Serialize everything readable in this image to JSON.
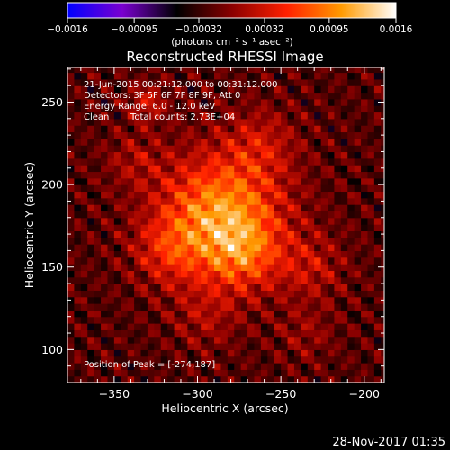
{
  "chart_data": {
    "type": "heatmap",
    "title": "Reconstructed RHESSI Image",
    "xlabel": "Heliocentric X (arcsec)",
    "ylabel": "Heliocentric Y (arcsec)",
    "xlim": [
      -378,
      -188
    ],
    "ylim": [
      80,
      271
    ],
    "xticks": [
      -350,
      -300,
      -250,
      -200
    ],
    "xtick_labels": [
      "−350",
      "−300",
      "−250",
      "−200"
    ],
    "yticks": [
      100,
      150,
      200,
      250
    ],
    "ytick_labels": [
      "100",
      "150",
      "200",
      "250"
    ],
    "colorbar": {
      "vmin": -0.0016,
      "vmax": 0.0016,
      "ticks": [
        -0.0016,
        -0.00095,
        -0.00032,
        0.00032,
        0.00095,
        0.0016
      ],
      "tick_labels": [
        "−0.0016",
        "−0.00095",
        "−0.00032",
        "0.00032",
        "0.00095",
        "0.0016"
      ],
      "units": "(photons cm⁻² s⁻¹ asec⁻²)",
      "colors": [
        "#0000ff",
        "#7a00d0",
        "#000000",
        "#8a0000",
        "#ff2000",
        "#ff9a00",
        "#ffffff"
      ]
    },
    "annotations": {
      "time_range": "21-Jun-2015 00:21:12.000 to 00:31:12.000",
      "detectors": "Detectors: 3F 5F 6F 7F 8F 9F, Att 0",
      "energy_range": "Energy Range: 6.0 - 12.0 keV",
      "algorithm": "Clean",
      "total_counts": "Total counts: 2.73E+04",
      "peak": "Position of Peak = [-274,187]"
    },
    "peak_position": [
      -274,
      187
    ],
    "sources": [
      {
        "x": -286,
        "y": 181,
        "sigma": 26,
        "amp": 0.0013
      },
      {
        "x": -272,
        "y": 158,
        "sigma": 15,
        "amp": 0.00055
      },
      {
        "x": -318,
        "y": 160,
        "sigma": 14,
        "amp": 0.00045
      },
      {
        "x": -262,
        "y": 225,
        "sigma": 15,
        "amp": 0.0004
      },
      {
        "x": -338,
        "y": 215,
        "sigma": 12,
        "amp": 0.0003
      },
      {
        "x": -330,
        "y": 250,
        "sigma": 8,
        "amp": 0.0005
      },
      {
        "x": -232,
        "y": 150,
        "sigma": 14,
        "amp": 0.0004
      },
      {
        "x": -295,
        "y": 120,
        "sigma": 14,
        "amp": 0.0003
      },
      {
        "x": -235,
        "y": 110,
        "sigma": 12,
        "amp": 0.00025
      }
    ]
  },
  "footer": {
    "date": "28-Nov-2017 01:35"
  }
}
